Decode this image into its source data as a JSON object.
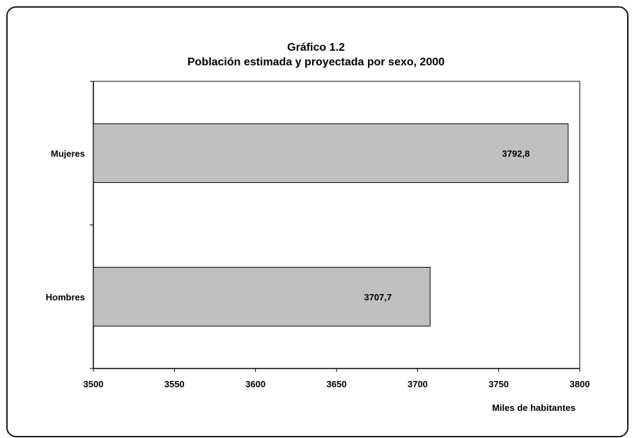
{
  "chart_data": {
    "type": "bar",
    "orientation": "horizontal",
    "title": "Gráfico 1.2",
    "subtitle": "Población estimada y proyectada por sexo, 2000",
    "xlabel": "Miles de habitantes",
    "ylabel": "",
    "categories": [
      "Hombres",
      "Mujeres"
    ],
    "values": [
      3707.7,
      3792.8
    ],
    "value_labels": [
      "3707,7",
      "3792,8"
    ],
    "xlim": [
      3500,
      3800
    ],
    "xticks": [
      3500,
      3550,
      3600,
      3650,
      3700,
      3750,
      3800
    ],
    "grid": false,
    "bar_color": "#c0c0c0",
    "bar_edge_color": "#000000"
  }
}
